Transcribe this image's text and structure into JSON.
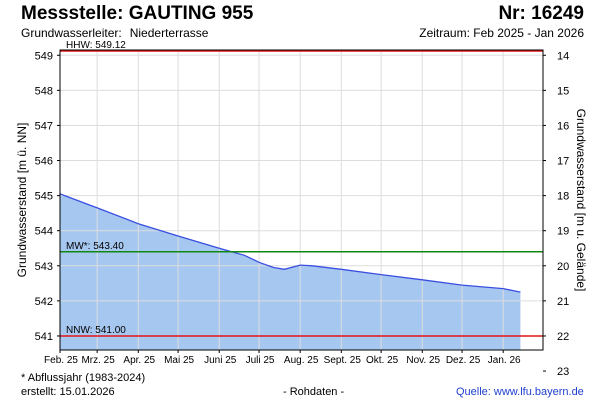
{
  "header": {
    "title": "Messstelle: GAUTING 955",
    "number": "Nr: 16249",
    "aquifer_label": "Grundwasserleiter:",
    "aquifer_value": "Niederterrasse",
    "period": "Zeitraum: Feb 2025 - Jan 2026"
  },
  "footer": {
    "note": "* Abflussjahr (1983-2024)",
    "created_label": "erstellt:",
    "created_date": "15.01.2026",
    "raw_data": "- Rohdaten -",
    "source_label": "Quelle:",
    "source_link": "www.lfu.bayern.de"
  },
  "chart_data": {
    "type": "area",
    "ylabel": "Grundwasserstand [m ü. NN]",
    "y2label": "Grundwasserstand [m u. Gelände]",
    "ylim": [
      540.6,
      549.15
    ],
    "yticks": [
      541,
      542,
      543,
      544,
      545,
      546,
      547,
      548,
      549
    ],
    "y2ticks": [
      14,
      15,
      16,
      17,
      18,
      19,
      20,
      21,
      22,
      23
    ],
    "y2_offset": 563.0,
    "xlim": [
      "2025-02-01",
      "2026-01-31"
    ],
    "xticks": [
      {
        "label": "Feb. 25",
        "date": "2025-02-01"
      },
      {
        "label": "Mrz. 25",
        "date": "2025-03-01"
      },
      {
        "label": "Apr. 25",
        "date": "2025-04-01"
      },
      {
        "label": "Mai 25",
        "date": "2025-05-01"
      },
      {
        "label": "Juni 25",
        "date": "2025-06-01"
      },
      {
        "label": "Juli 25",
        "date": "2025-07-01"
      },
      {
        "label": "Aug. 25",
        "date": "2025-08-01"
      },
      {
        "label": "Sept. 25",
        "date": "2025-09-01"
      },
      {
        "label": "Okt. 25",
        "date": "2025-10-01"
      },
      {
        "label": "Nov. 25",
        "date": "2025-11-01"
      },
      {
        "label": "Dez. 25",
        "date": "2025-12-01"
      },
      {
        "label": "Jan. 26",
        "date": "2026-01-01"
      }
    ],
    "grid": true,
    "series": [
      {
        "x": [
          "2025-02-01",
          "2025-03-01",
          "2025-04-01",
          "2025-05-01",
          "2025-06-01",
          "2025-06-20",
          "2025-07-01",
          "2025-07-12",
          "2025-07-20",
          "2025-08-01",
          "2025-08-10",
          "2025-09-01",
          "2025-10-01",
          "2025-11-01",
          "2025-12-01",
          "2026-01-01",
          "2026-01-14"
        ],
        "y": [
          545.05,
          544.65,
          544.2,
          543.85,
          543.5,
          543.3,
          543.1,
          542.95,
          542.9,
          543.02,
          543.0,
          542.9,
          542.75,
          542.6,
          542.45,
          542.35,
          542.25
        ],
        "color": "#3a4fe0",
        "fill": "#a6c7f0"
      }
    ],
    "reference_lines": [
      {
        "label": "HHW: 549.12",
        "value": 549.12,
        "color": "#e01515"
      },
      {
        "label": "MW*: 543.40",
        "value": 543.4,
        "color": "#118811"
      },
      {
        "label": "NNW: 541.00",
        "value": 541.0,
        "color": "#e01515"
      }
    ]
  }
}
